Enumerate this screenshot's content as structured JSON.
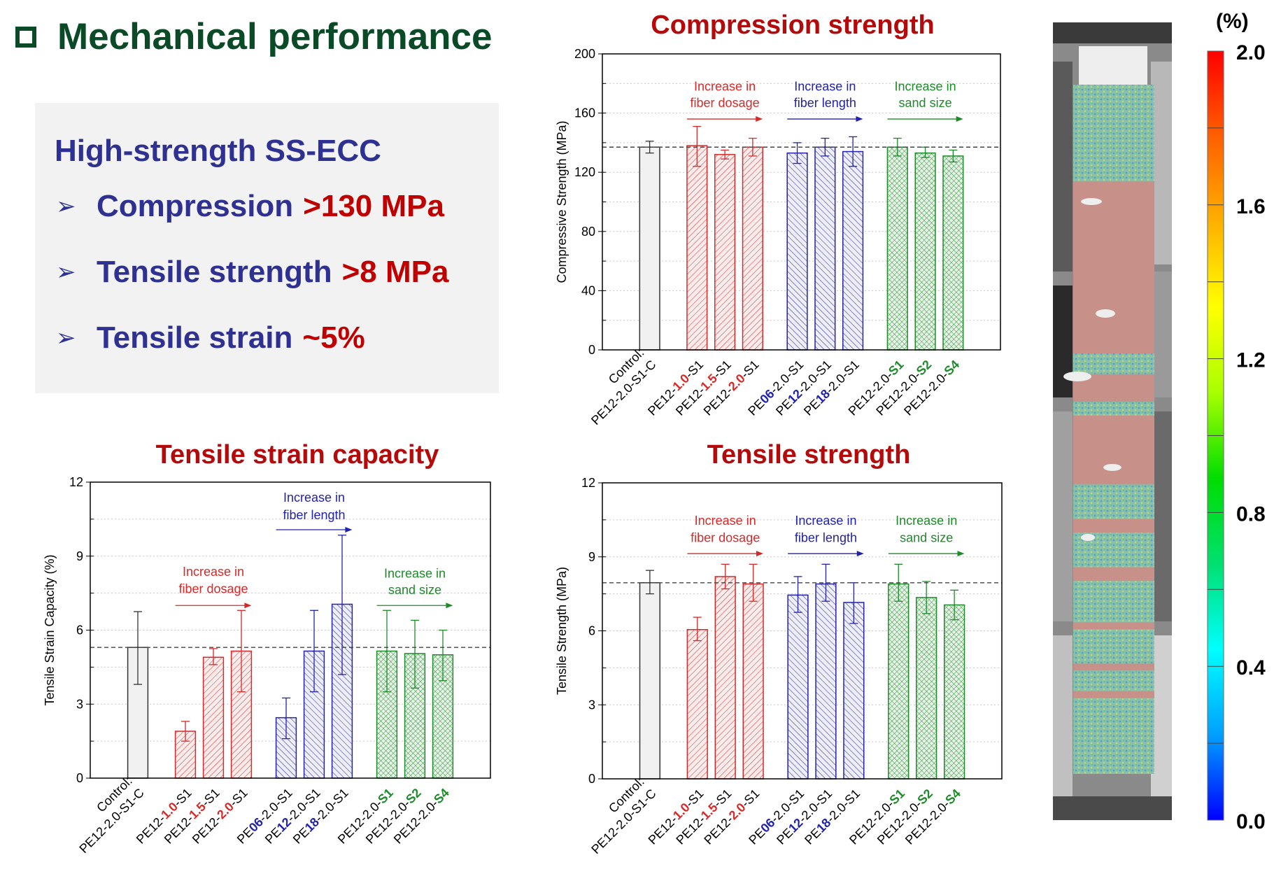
{
  "header": {
    "title": "Mechanical performance",
    "title_color": "#0b4a26"
  },
  "summary": {
    "heading": "High-strength SS-ECC",
    "bullets": [
      {
        "label": "Compression",
        "value": ">130 MPa"
      },
      {
        "label": "Tensile strength",
        "value": ">8 MPa"
      },
      {
        "label": "Tensile strain",
        "value": "~5%"
      }
    ],
    "bullet_icon": "arrowhead-bullet-icon",
    "label_color": "#2e3192",
    "value_color": "#c00000"
  },
  "group_colors": {
    "control": "#333333",
    "dosage": "#d62a2a",
    "length": "#2222aa",
    "sand": "#1e8a2a"
  },
  "category_labels": [
    {
      "lines": [
        [
          {
            "t": "Control:"
          }
        ],
        [
          {
            "t": "PE12-2.0-S1-C"
          }
        ]
      ]
    },
    {
      "lines": [
        [
          {
            "t": "PE12-"
          },
          {
            "t": "1.0",
            "g": "dosage"
          },
          {
            "t": "-S1"
          }
        ]
      ]
    },
    {
      "lines": [
        [
          {
            "t": "PE12-"
          },
          {
            "t": "1.5",
            "g": "dosage"
          },
          {
            "t": "-S1"
          }
        ]
      ]
    },
    {
      "lines": [
        [
          {
            "t": "PE12-"
          },
          {
            "t": "2.0",
            "g": "dosage"
          },
          {
            "t": "-S1"
          }
        ]
      ]
    },
    {
      "lines": [
        [
          {
            "t": "PE"
          },
          {
            "t": "06",
            "g": "length"
          },
          {
            "t": "-2.0-S1"
          }
        ]
      ]
    },
    {
      "lines": [
        [
          {
            "t": "PE"
          },
          {
            "t": "12",
            "g": "length"
          },
          {
            "t": "-2.0-S1"
          }
        ]
      ]
    },
    {
      "lines": [
        [
          {
            "t": "PE"
          },
          {
            "t": "18",
            "g": "length"
          },
          {
            "t": "-2.0-S1"
          }
        ]
      ]
    },
    {
      "lines": [
        [
          {
            "t": "PE12-2.0-"
          },
          {
            "t": "S1",
            "g": "sand"
          }
        ]
      ]
    },
    {
      "lines": [
        [
          {
            "t": "PE12-2.0-"
          },
          {
            "t": "S2",
            "g": "sand"
          }
        ]
      ]
    },
    {
      "lines": [
        [
          {
            "t": "PE12-2.0-"
          },
          {
            "t": "S4",
            "g": "sand"
          }
        ]
      ]
    }
  ],
  "chart_data": [
    {
      "type": "bar",
      "title": "Compression strength",
      "ylabel": "Compressive Strength (MPa)",
      "ylim": [
        0,
        200
      ],
      "yticks": [
        0,
        40,
        80,
        120,
        160,
        200
      ],
      "minor_step": 20,
      "grid": true,
      "reference_line": 137,
      "groups": [
        "control",
        "dosage",
        "dosage",
        "dosage",
        "length",
        "length",
        "length",
        "sand",
        "sand",
        "sand"
      ],
      "values": [
        137,
        138,
        132,
        137,
        133,
        137,
        134,
        137,
        133,
        131
      ],
      "error_low": [
        133,
        124,
        129,
        131,
        126,
        131,
        124,
        131,
        130,
        127
      ],
      "error_high": [
        141,
        151,
        135,
        143,
        140,
        143,
        144,
        143,
        137,
        135
      ],
      "annotations": [
        {
          "group": "dosage",
          "lines": [
            "Increase in",
            "fiber dosage"
          ]
        },
        {
          "group": "length",
          "lines": [
            "Increase in",
            "fiber length"
          ]
        },
        {
          "group": "sand",
          "lines": [
            "Increase in",
            "sand size"
          ]
        }
      ]
    },
    {
      "type": "bar",
      "title": "Tensile strain capacity",
      "ylabel": "Tensile Strain Capacity (%)",
      "ylim": [
        0,
        12
      ],
      "yticks": [
        0,
        3,
        6,
        9,
        12
      ],
      "minor_step": 1.5,
      "grid": true,
      "reference_line": 5.3,
      "groups": [
        "control",
        "dosage",
        "dosage",
        "dosage",
        "length",
        "length",
        "length",
        "sand",
        "sand",
        "sand"
      ],
      "values": [
        5.3,
        1.9,
        4.9,
        5.15,
        2.45,
        5.15,
        7.05,
        5.15,
        5.05,
        5.0
      ],
      "error_low": [
        3.8,
        1.5,
        4.6,
        3.5,
        1.6,
        3.5,
        4.2,
        3.5,
        3.65,
        3.95
      ],
      "error_high": [
        6.75,
        2.3,
        5.25,
        6.8,
        3.25,
        6.8,
        9.85,
        6.8,
        6.4,
        6.0
      ],
      "annotations": [
        {
          "group": "dosage",
          "lines": [
            "Increase in",
            "fiber dosage"
          ]
        },
        {
          "group": "length",
          "lines": [
            "Increase in",
            "fiber length"
          ]
        },
        {
          "group": "sand",
          "lines": [
            "Increase in",
            "sand size"
          ]
        }
      ]
    },
    {
      "type": "bar",
      "title": "Tensile strength",
      "ylabel": "Tensile Strength (MPa)",
      "ylim": [
        0,
        12
      ],
      "yticks": [
        0,
        3,
        6,
        9,
        12
      ],
      "minor_step": 1.5,
      "grid": true,
      "reference_line": 7.95,
      "groups": [
        "control",
        "dosage",
        "dosage",
        "dosage",
        "length",
        "length",
        "length",
        "sand",
        "sand",
        "sand"
      ],
      "values": [
        7.95,
        6.05,
        8.2,
        7.9,
        7.45,
        7.9,
        7.15,
        7.9,
        7.35,
        7.05
      ],
      "error_low": [
        7.5,
        5.6,
        7.7,
        7.2,
        6.75,
        7.2,
        6.3,
        7.2,
        6.7,
        6.45
      ],
      "error_high": [
        8.45,
        6.55,
        8.7,
        8.7,
        8.2,
        8.7,
        7.95,
        8.7,
        8.0,
        7.65
      ],
      "annotations": [
        {
          "group": "dosage",
          "lines": [
            "Increase in",
            "fiber dosage"
          ]
        },
        {
          "group": "length",
          "lines": [
            "Increase in",
            "fiber length"
          ]
        },
        {
          "group": "sand",
          "lines": [
            "Increase in",
            "sand size"
          ]
        }
      ]
    }
  ],
  "strain_map": {
    "unit": "(%)",
    "range": [
      0.0,
      2.0
    ],
    "tick_labels": [
      "2.0",
      "1.6",
      "1.2",
      "0.8",
      "0.4",
      "0.0"
    ],
    "colormap": [
      "#0000ff",
      "#00a0ff",
      "#00ffff",
      "#00e070",
      "#00dd00",
      "#a8ff00",
      "#ffff00",
      "#ffb000",
      "#ff6000",
      "#ff0000"
    ]
  }
}
